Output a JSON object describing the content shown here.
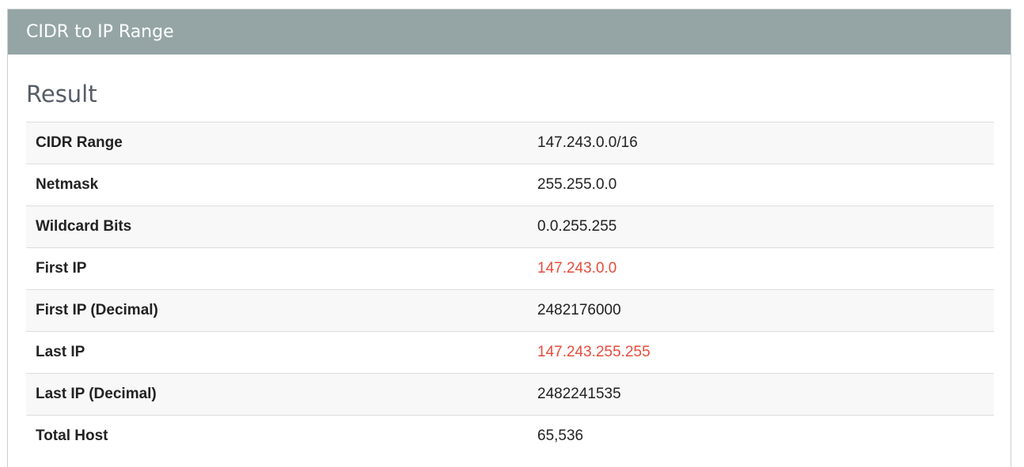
{
  "panel": {
    "title": "CIDR to IP Range"
  },
  "result": {
    "heading": "Result",
    "rows": [
      {
        "label": "CIDR Range",
        "value": "147.243.0.0/16",
        "highlight": false
      },
      {
        "label": "Netmask",
        "value": "255.255.0.0",
        "highlight": false
      },
      {
        "label": "Wildcard Bits",
        "value": "0.0.255.255",
        "highlight": false
      },
      {
        "label": "First IP",
        "value": "147.243.0.0",
        "highlight": true
      },
      {
        "label": "First IP (Decimal)",
        "value": "2482176000",
        "highlight": false
      },
      {
        "label": "Last IP",
        "value": "147.243.255.255",
        "highlight": true
      },
      {
        "label": "Last IP (Decimal)",
        "value": "2482241535",
        "highlight": false
      },
      {
        "label": "Total Host",
        "value": "65,536",
        "highlight": false
      }
    ]
  },
  "colors": {
    "header_bg": "#95a5a6",
    "highlight_text": "#e74c3c"
  }
}
